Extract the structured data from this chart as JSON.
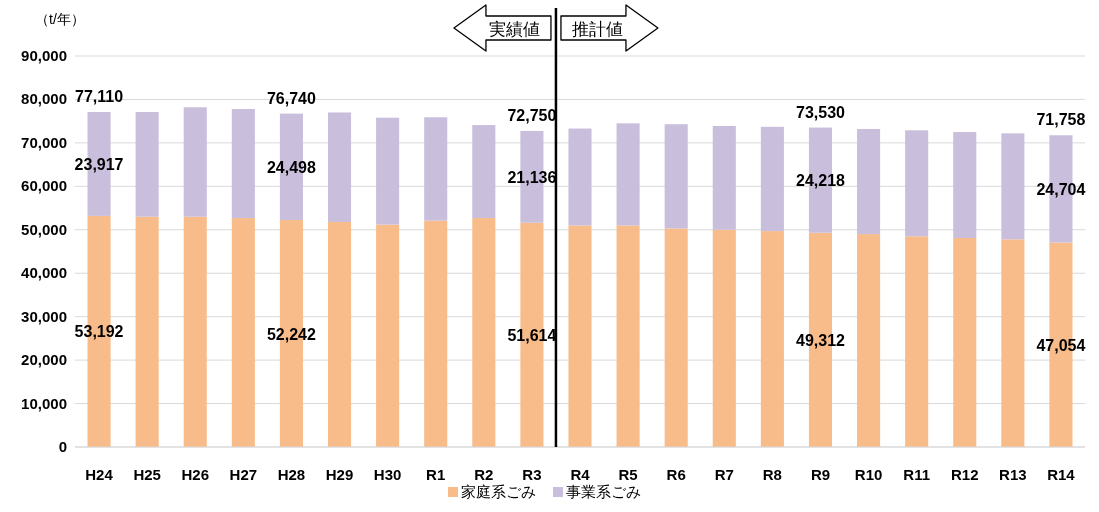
{
  "chart_data": {
    "type": "bar",
    "stacked": true,
    "ylabel": "（t/年）",
    "categories": [
      "H24",
      "H25",
      "H26",
      "H27",
      "H28",
      "H29",
      "H30",
      "R1",
      "R2",
      "R3",
      "R4",
      "R5",
      "R6",
      "R7",
      "R8",
      "R9",
      "R10",
      "R11",
      "R12",
      "R13",
      "R14"
    ],
    "series": [
      {
        "name": "家庭系ごみ",
        "color": "#f8bc8a",
        "values": [
          53192,
          53000,
          53000,
          52700,
          52242,
          51800,
          51200,
          52100,
          52700,
          51614,
          51000,
          51000,
          50300,
          50000,
          49700,
          49312,
          49000,
          48500,
          48100,
          47800,
          47054
        ],
        "value_labels": [
          "53,192",
          null,
          null,
          null,
          "52,242",
          null,
          null,
          null,
          null,
          "51,614",
          null,
          null,
          null,
          null,
          null,
          "49,312",
          null,
          null,
          null,
          null,
          "47,054"
        ]
      },
      {
        "name": "事業系ごみ",
        "color": "#c9bfdc",
        "values": [
          23917,
          24100,
          25200,
          25100,
          24498,
          25200,
          24600,
          23800,
          21400,
          21136,
          22300,
          23500,
          24000,
          23900,
          24000,
          24218,
          24200,
          24400,
          24400,
          24400,
          24704
        ],
        "value_labels": [
          "23,917",
          null,
          null,
          null,
          "24,498",
          null,
          null,
          null,
          null,
          "21,136",
          null,
          null,
          null,
          null,
          null,
          "24,218",
          null,
          null,
          null,
          null,
          "24,704"
        ]
      }
    ],
    "totals": [
      "77,110",
      null,
      null,
      null,
      "76,740",
      null,
      null,
      null,
      null,
      "72,750",
      null,
      null,
      null,
      null,
      null,
      "73,530",
      null,
      null,
      null,
      null,
      "71,758"
    ],
    "ylim": [
      0,
      90000
    ],
    "yticks": [
      {
        "value": 0,
        "label": "0"
      },
      {
        "value": 10000,
        "label": "10,000"
      },
      {
        "value": 20000,
        "label": "20,000"
      },
      {
        "value": 30000,
        "label": "30,000"
      },
      {
        "value": 40000,
        "label": "40,000"
      },
      {
        "value": 50000,
        "label": "50,000"
      },
      {
        "value": 60000,
        "label": "60,000"
      },
      {
        "value": 70000,
        "label": "70,000"
      },
      {
        "value": 80000,
        "label": "80,000"
      },
      {
        "value": 90000,
        "label": "90,000"
      }
    ],
    "ref_lines": [
      {
        "axis": "x",
        "value": "R4",
        "color": "#000000"
      }
    ],
    "annotations": [
      "実績値",
      "推計値"
    ],
    "grid": "y",
    "legend": "bottom"
  }
}
